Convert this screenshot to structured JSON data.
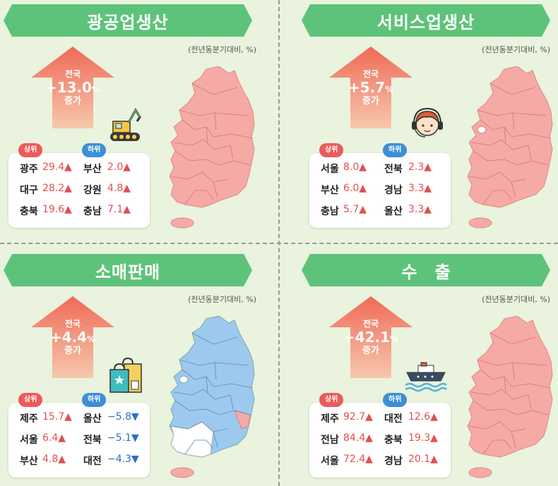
{
  "unit_label": "(전년동분기대비, %)",
  "badges": {
    "top": "상위",
    "bottom": "하위"
  },
  "nation_label": "전국",
  "increase_label": "증가",
  "percent_sign": "%",
  "colors": {
    "banner": "#5ec37a",
    "arrow": "#ef6a57",
    "up": "#e0504e",
    "down": "#2f6fc6",
    "map_pink": "#f6aaa5",
    "map_blue": "#9dc9ef"
  },
  "panels": [
    {
      "title": "광공업생산",
      "national": "+13.0",
      "icon": "excavator-icon",
      "top": [
        {
          "region": "광주",
          "value": "29.4▲"
        },
        {
          "region": "대구",
          "value": "28.2▲"
        },
        {
          "region": "충북",
          "value": "19.6▲"
        }
      ],
      "bottom": [
        {
          "region": "부산",
          "value": "2.0▲"
        },
        {
          "region": "강원",
          "value": "4.8▲"
        },
        {
          "region": "충남",
          "value": "7.1▲"
        }
      ]
    },
    {
      "title": "서비스업생산",
      "national": "+5.7",
      "icon": "headset-agent-icon",
      "top": [
        {
          "region": "서울",
          "value": "8.0▲"
        },
        {
          "region": "부산",
          "value": "6.0▲"
        },
        {
          "region": "충남",
          "value": "5.7▲"
        }
      ],
      "bottom": [
        {
          "region": "전북",
          "value": "2.3▲"
        },
        {
          "region": "경남",
          "value": "3.3▲"
        },
        {
          "region": "울산",
          "value": "3.3▲"
        }
      ]
    },
    {
      "title": "소매판매",
      "national": "+4.4",
      "icon": "shopping-bag-icon",
      "top": [
        {
          "region": "제주",
          "value": "15.7▲"
        },
        {
          "region": "서울",
          "value": "6.4▲"
        },
        {
          "region": "부산",
          "value": "4.8▲"
        }
      ],
      "bottom": [
        {
          "region": "울산",
          "value": "−5.8▼"
        },
        {
          "region": "전북",
          "value": "−5.1▼"
        },
        {
          "region": "대전",
          "value": "−4.3▼"
        }
      ]
    },
    {
      "title": "수   출",
      "national": "+42.1",
      "icon": "ship-icon",
      "top": [
        {
          "region": "제주",
          "value": "92.7▲"
        },
        {
          "region": "전남",
          "value": "84.4▲"
        },
        {
          "region": "서울",
          "value": "72.4▲"
        }
      ],
      "bottom": [
        {
          "region": "대전",
          "value": "12.6▲"
        },
        {
          "region": "충북",
          "value": "19.3▲"
        },
        {
          "region": "경남",
          "value": "20.1▲"
        }
      ]
    }
  ]
}
